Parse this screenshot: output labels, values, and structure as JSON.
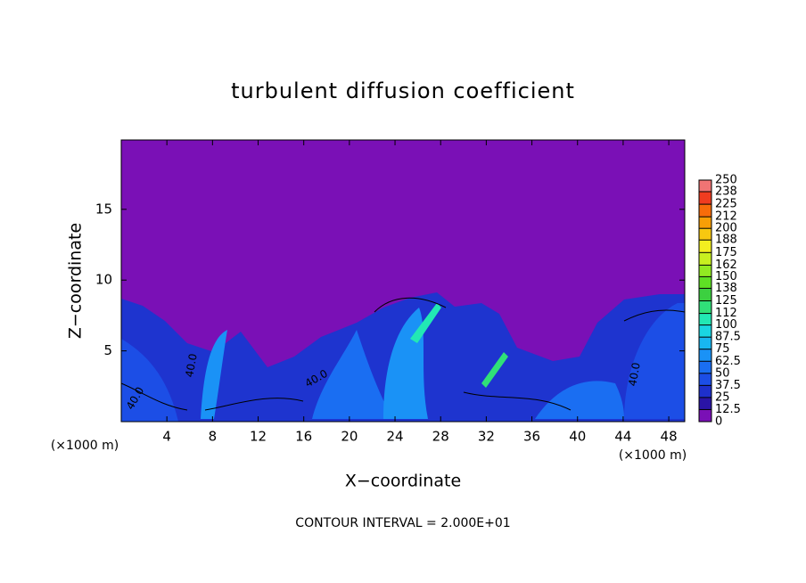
{
  "chart_data": {
    "type": "contour",
    "title": "turbulent diffusion coefficient",
    "xlabel": "X−coordinate",
    "ylabel": "Z−coordinate",
    "x_unit_label": "(×1000 m)",
    "xlim": [
      0,
      49.4
    ],
    "ylim": [
      0,
      19.9
    ],
    "xticks": [
      4,
      8,
      12,
      16,
      20,
      24,
      28,
      32,
      36,
      40,
      44,
      48
    ],
    "yticks": [
      5,
      10,
      15
    ],
    "background_color": "#7a10b6",
    "colorbar": {
      "ticks": [
        0,
        12.5,
        25,
        37.5,
        50,
        62.5,
        75,
        87.5,
        100,
        112,
        125,
        138,
        150,
        162,
        175,
        188,
        200,
        212,
        225,
        238,
        250
      ],
      "colors": [
        "#7a10b6",
        "#2a14a6",
        "#1e30cc",
        "#1c4ee6",
        "#1a6ef2",
        "#1a92f6",
        "#18b6f0",
        "#1ad6e2",
        "#22e8b4",
        "#30e078",
        "#3cd040",
        "#5ee024",
        "#92ea22",
        "#c8f020",
        "#f2ee20",
        "#f8c810",
        "#f89e06",
        "#f86c0a",
        "#f03c20",
        "#f07474"
      ]
    },
    "contour_labels": [
      "40.0",
      "40.0",
      "40.0",
      "40.0"
    ],
    "footnote": "CONTOUR INTERVAL = 2.000E+01"
  }
}
